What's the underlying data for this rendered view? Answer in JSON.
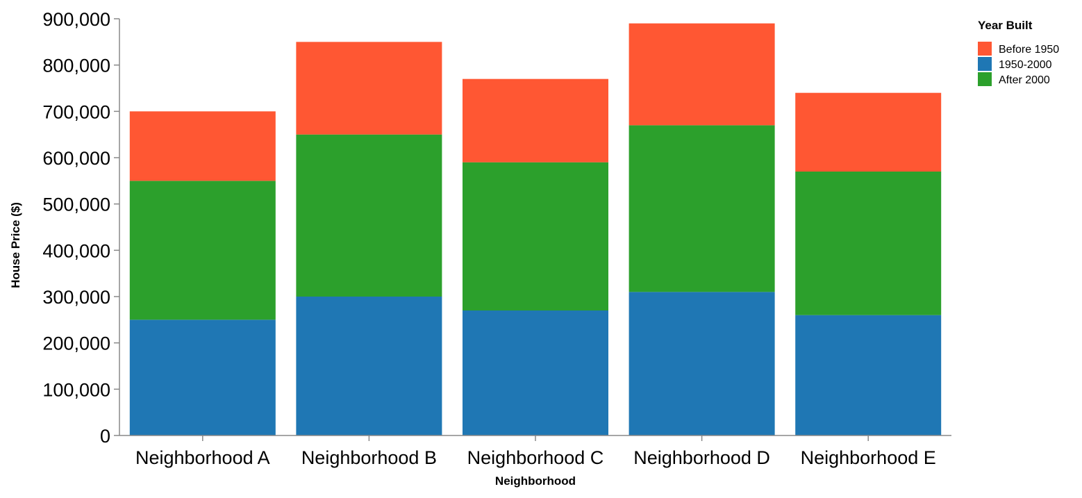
{
  "chart_data": {
    "type": "bar",
    "stacked": true,
    "categories": [
      "Neighborhood A",
      "Neighborhood B",
      "Neighborhood C",
      "Neighborhood D",
      "Neighborhood E"
    ],
    "series": [
      {
        "name": "1950-2000",
        "color": "#1f77b4",
        "values": [
          250000,
          300000,
          270000,
          310000,
          260000
        ]
      },
      {
        "name": "After 2000",
        "color": "#2ca02c",
        "values": [
          300000,
          350000,
          320000,
          360000,
          310000
        ]
      },
      {
        "name": "Before 1950",
        "color": "#ff5733",
        "values": [
          150000,
          200000,
          180000,
          220000,
          170000
        ]
      }
    ],
    "title": "",
    "xlabel": "Neighborhood",
    "ylabel": "House Price ($)",
    "ylim": [
      0,
      900000
    ],
    "yticks": [
      0,
      100000,
      200000,
      300000,
      400000,
      500000,
      600000,
      700000,
      800000,
      900000
    ],
    "ytick_labels": [
      "0",
      "100,000",
      "200,000",
      "300,000",
      "400,000",
      "500,000",
      "600,000",
      "700,000",
      "800,000",
      "900,000"
    ],
    "grid": false,
    "legend": {
      "title": "Year Built",
      "placement": "right",
      "entries": [
        {
          "label": "Before 1950",
          "color": "#ff5733"
        },
        {
          "label": "1950-2000",
          "color": "#1f77b4"
        },
        {
          "label": "After 2000",
          "color": "#2ca02c"
        }
      ]
    }
  }
}
